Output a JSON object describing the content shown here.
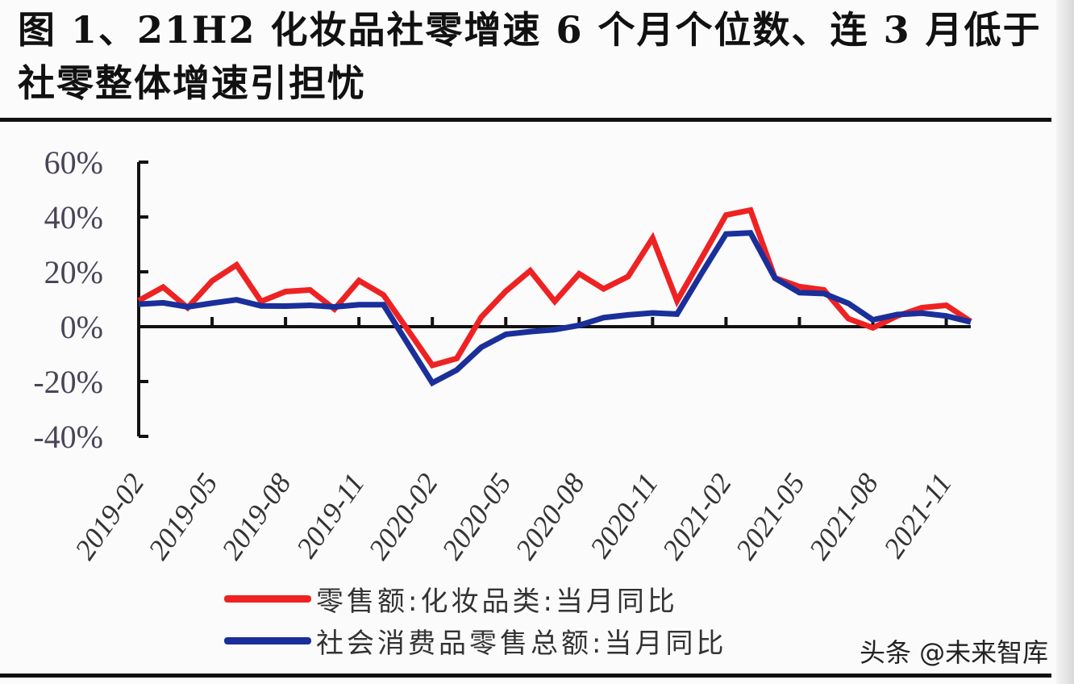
{
  "title": "图 1、21H2 化妆品社零增速 6 个月个位数、连 3 月低于社零整体增速引担忧",
  "watermark": "头条 @未来智库",
  "colors": {
    "cosmetics": "#ee2222",
    "total": "#1a2f9a",
    "axis": "#111111"
  },
  "chart_data": {
    "type": "line",
    "title": "图 1、21H2 化妆品社零增速 6 个月个位数、连 3 月低于社零整体增速引担忧",
    "xlabel": "",
    "ylabel": "",
    "ylim": [
      -0.4,
      0.6
    ],
    "yticks": [
      "60%",
      "40%",
      "20%",
      "0%",
      "-20%",
      "-40%"
    ],
    "xtick_labels": [
      "2019-02",
      "2019-05",
      "2019-08",
      "2019-11",
      "2020-02",
      "2020-05",
      "2020-08",
      "2020-11",
      "2021-02",
      "2021-05",
      "2021-08",
      "2021-11"
    ],
    "grid": false,
    "legend_position": "bottom",
    "x": [
      "2019-02",
      "2019-03",
      "2019-04",
      "2019-05",
      "2019-06",
      "2019-07",
      "2019-08",
      "2019-09",
      "2019-10",
      "2019-11",
      "2019-12",
      "2020-01",
      "2020-02",
      "2020-03",
      "2020-04",
      "2020-05",
      "2020-06",
      "2020-07",
      "2020-08",
      "2020-09",
      "2020-10",
      "2020-11",
      "2020-12",
      "2021-01",
      "2021-02",
      "2021-03",
      "2021-04",
      "2021-05",
      "2021-06",
      "2021-07",
      "2021-08",
      "2021-09",
      "2021-10",
      "2021-11",
      "2021-12"
    ],
    "series": [
      {
        "name": "零售额:化妆品类:当月同比",
        "color": "#ee2222",
        "values": [
          9.5,
          14.4,
          6.9,
          16.7,
          22.5,
          9.2,
          12.8,
          13.4,
          6.4,
          16.8,
          11.6,
          -1.2,
          -14.1,
          -11.6,
          3.5,
          12.9,
          20.4,
          9.2,
          19.3,
          13.8,
          18.3,
          32.3,
          9.4,
          25.0,
          40.7,
          42.5,
          17.8,
          14.6,
          13.4,
          2.9,
          -0.4,
          3.9,
          6.9,
          7.8,
          1.9
        ]
      },
      {
        "name": "社会消费品零售总额:当月同比",
        "color": "#1a2f9a",
        "values": [
          8.2,
          8.7,
          7.2,
          8.6,
          9.8,
          7.6,
          7.5,
          7.8,
          7.2,
          8.0,
          8.0,
          -6.3,
          -20.5,
          -15.8,
          -7.5,
          -2.8,
          -1.8,
          -1.1,
          0.5,
          3.3,
          4.3,
          5.0,
          4.6,
          19.4,
          33.8,
          34.2,
          17.7,
          12.4,
          12.1,
          8.5,
          2.5,
          4.4,
          4.9,
          3.9,
          1.7
        ]
      }
    ]
  },
  "legend": [
    {
      "label": "零售额:化妆品类:当月同比",
      "color": "#ee2222"
    },
    {
      "label": "社会消费品零售总额:当月同比",
      "color": "#1a2f9a"
    }
  ]
}
